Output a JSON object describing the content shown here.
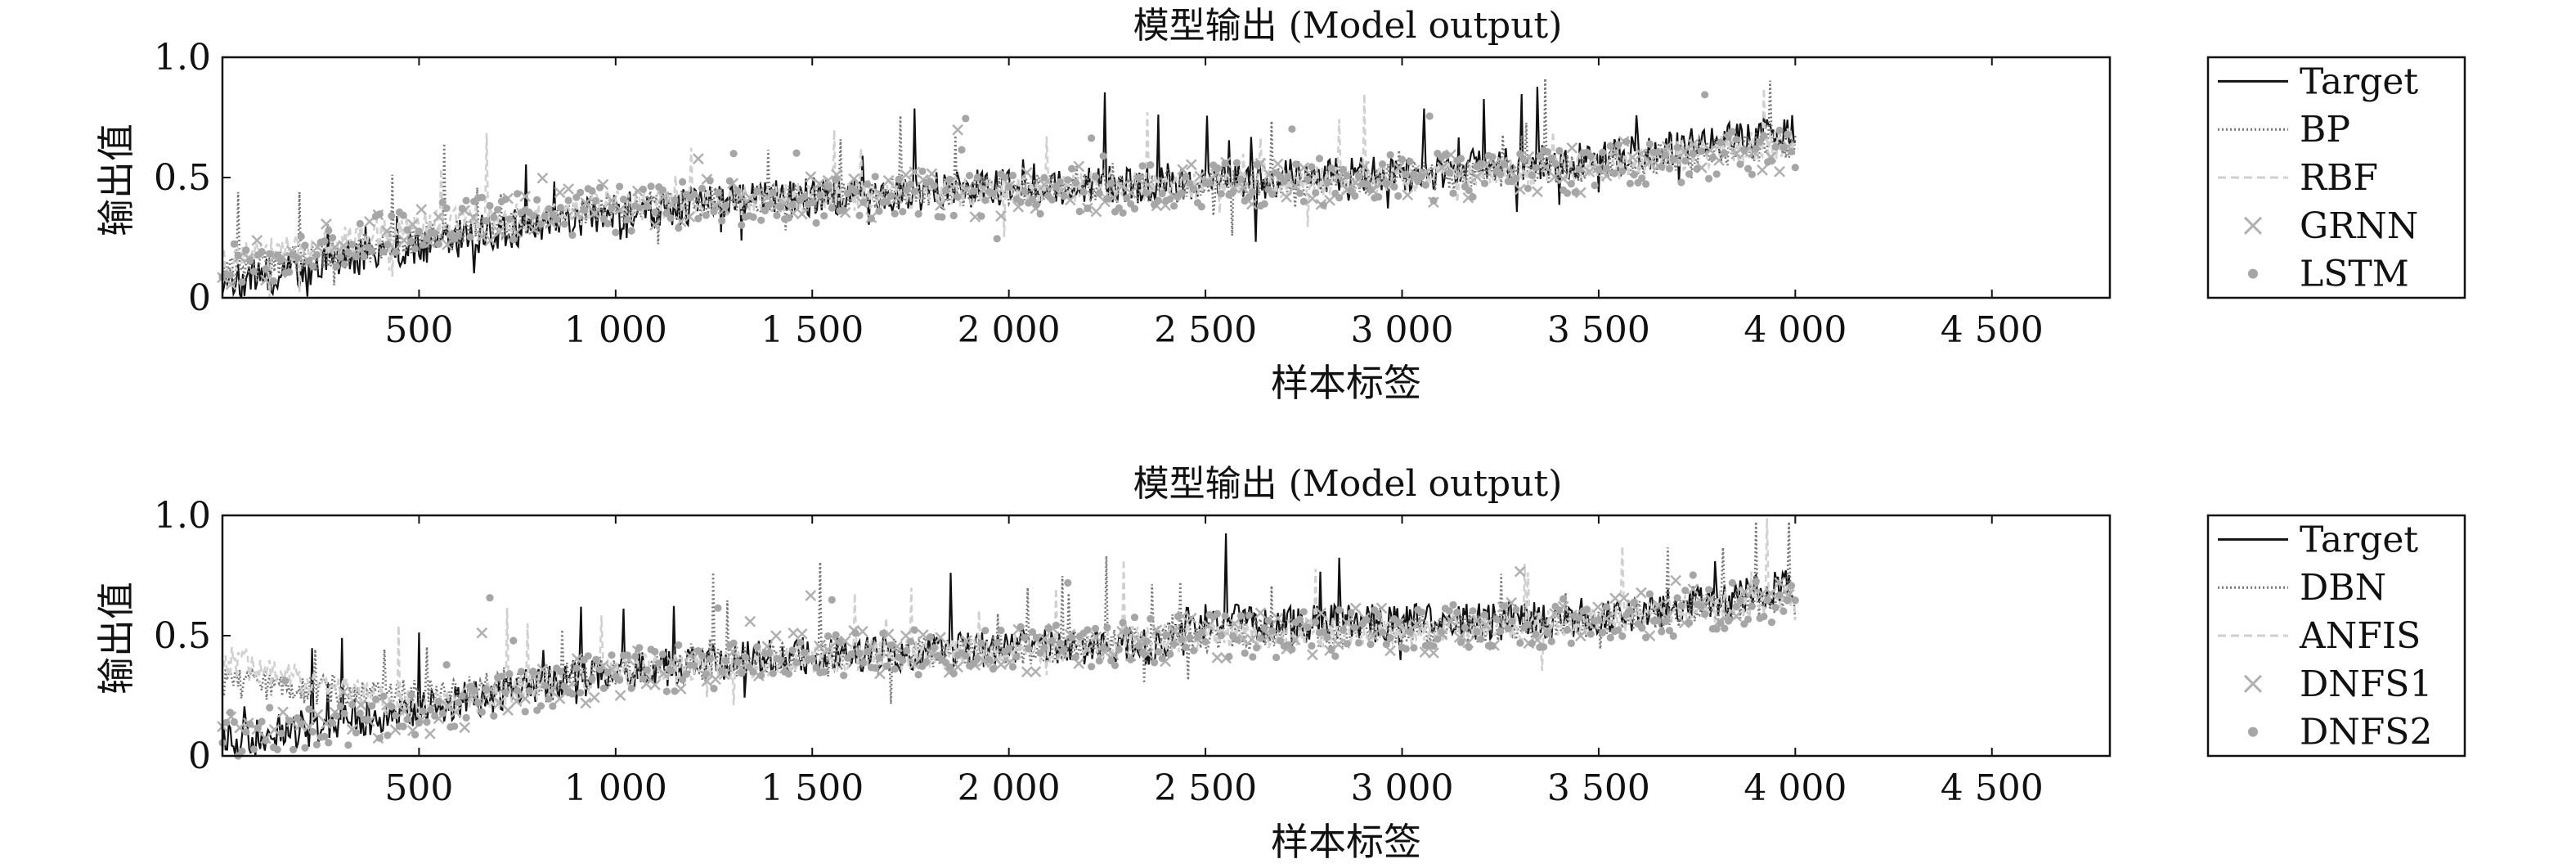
{
  "chart_data": [
    {
      "type": "line",
      "title": "模型输出 (Model output)",
      "xlabel": "样本标签",
      "ylabel": "输出值",
      "xlim": [
        0,
        4800
      ],
      "ylim": [
        0,
        1.0
      ],
      "xticks": [
        500,
        1000,
        1500,
        2000,
        2500,
        3000,
        3500,
        4000,
        4500
      ],
      "xtick_labels": [
        "500",
        "1 000",
        "1 500",
        "2 000",
        "2 500",
        "3 000",
        "3 500",
        "4 000",
        "4 500"
      ],
      "yticks": [
        0,
        0.5,
        1.0
      ],
      "ytick_labels": [
        "0",
        "0.5",
        "1.0"
      ],
      "legend_position": "right",
      "sample_count": 4000,
      "series": [
        {
          "name": "Target",
          "style": "solid-line",
          "color": "#111111",
          "trend": [
            [
              0,
              0.05
            ],
            [
              500,
              0.22
            ],
            [
              1000,
              0.36
            ],
            [
              1500,
              0.42
            ],
            [
              2000,
              0.46
            ],
            [
              2500,
              0.48
            ],
            [
              3000,
              0.52
            ],
            [
              3500,
              0.57
            ],
            [
              4000,
              0.7
            ]
          ]
        },
        {
          "name": "BP",
          "style": "dotted-line",
          "color": "#777777",
          "trend": [
            [
              0,
              0.1
            ],
            [
              500,
              0.25
            ],
            [
              1000,
              0.38
            ],
            [
              1500,
              0.42
            ],
            [
              2000,
              0.45
            ],
            [
              2500,
              0.47
            ],
            [
              3000,
              0.5
            ],
            [
              3500,
              0.55
            ],
            [
              4000,
              0.65
            ]
          ]
        },
        {
          "name": "RBF",
          "style": "dashed-line",
          "color": "#d0d0d0",
          "trend": [
            [
              0,
              0.15
            ],
            [
              500,
              0.3
            ],
            [
              1000,
              0.38
            ],
            [
              1500,
              0.42
            ],
            [
              2000,
              0.45
            ],
            [
              2500,
              0.47
            ],
            [
              3000,
              0.5
            ],
            [
              3500,
              0.55
            ],
            [
              4000,
              0.65
            ]
          ]
        },
        {
          "name": "GRNN",
          "style": "cross-marker",
          "color": "#b0b0b0",
          "trend": [
            [
              0,
              0.12
            ],
            [
              500,
              0.3
            ],
            [
              1000,
              0.38
            ],
            [
              1500,
              0.41
            ],
            [
              2000,
              0.44
            ],
            [
              2500,
              0.46
            ],
            [
              3000,
              0.49
            ],
            [
              3500,
              0.53
            ],
            [
              4000,
              0.62
            ]
          ]
        },
        {
          "name": "LSTM",
          "style": "dot-marker",
          "color": "#a6a6a6",
          "trend": [
            [
              0,
              0.12
            ],
            [
              500,
              0.3
            ],
            [
              1000,
              0.37
            ],
            [
              1500,
              0.41
            ],
            [
              2000,
              0.44
            ],
            [
              2500,
              0.46
            ],
            [
              3000,
              0.5
            ],
            [
              3500,
              0.54
            ],
            [
              4000,
              0.63
            ]
          ]
        }
      ]
    },
    {
      "type": "line",
      "title": "模型输出 (Model output)",
      "xlabel": "样本标签",
      "ylabel": "输出值",
      "xlim": [
        0,
        4800
      ],
      "ylim": [
        0,
        1.0
      ],
      "xticks": [
        500,
        1000,
        1500,
        2000,
        2500,
        3000,
        3500,
        4000,
        4500
      ],
      "xtick_labels": [
        "500",
        "1 000",
        "1 500",
        "2 000",
        "2 500",
        "3 000",
        "3 500",
        "4 000",
        "4 500"
      ],
      "yticks": [
        0,
        0.5,
        1.0
      ],
      "ytick_labels": [
        "0",
        "0.5",
        "1.0"
      ],
      "legend_position": "right",
      "sample_count": 4000,
      "series": [
        {
          "name": "Target",
          "style": "solid-line",
          "color": "#111111",
          "trend": [
            [
              0,
              0.05
            ],
            [
              500,
              0.2
            ],
            [
              1000,
              0.35
            ],
            [
              1500,
              0.42
            ],
            [
              2000,
              0.45
            ],
            [
              2400,
              0.46
            ],
            [
              2450,
              0.55
            ],
            [
              3000,
              0.55
            ],
            [
              3500,
              0.57
            ],
            [
              4000,
              0.7
            ]
          ]
        },
        {
          "name": "DBN",
          "style": "dotted-line",
          "color": "#777777",
          "trend": [
            [
              0,
              0.3
            ],
            [
              500,
              0.25
            ],
            [
              1000,
              0.35
            ],
            [
              1500,
              0.42
            ],
            [
              2000,
              0.44
            ],
            [
              2500,
              0.5
            ],
            [
              3000,
              0.52
            ],
            [
              3500,
              0.56
            ],
            [
              4000,
              0.66
            ]
          ]
        },
        {
          "name": "ANFIS",
          "style": "dashed-line",
          "color": "#d0d0d0",
          "trend": [
            [
              0,
              0.4
            ],
            [
              500,
              0.2
            ],
            [
              1000,
              0.35
            ],
            [
              1500,
              0.41
            ],
            [
              2000,
              0.44
            ],
            [
              2500,
              0.5
            ],
            [
              3000,
              0.52
            ],
            [
              3500,
              0.56
            ],
            [
              4000,
              0.66
            ]
          ]
        },
        {
          "name": "DNFS1",
          "style": "cross-marker",
          "color": "#b0b0b0",
          "trend": [
            [
              0,
              0.15
            ],
            [
              500,
              0.18
            ],
            [
              1000,
              0.34
            ],
            [
              1500,
              0.42
            ],
            [
              2000,
              0.44
            ],
            [
              2500,
              0.5
            ],
            [
              3000,
              0.52
            ],
            [
              3500,
              0.56
            ],
            [
              4000,
              0.66
            ]
          ]
        },
        {
          "name": "DNFS2",
          "style": "dot-marker",
          "color": "#a6a6a6",
          "trend": [
            [
              0,
              0.08
            ],
            [
              500,
              0.18
            ],
            [
              1000,
              0.34
            ],
            [
              1500,
              0.42
            ],
            [
              2000,
              0.44
            ],
            [
              2500,
              0.5
            ],
            [
              3000,
              0.52
            ],
            [
              3500,
              0.56
            ],
            [
              4000,
              0.66
            ]
          ]
        }
      ]
    }
  ]
}
